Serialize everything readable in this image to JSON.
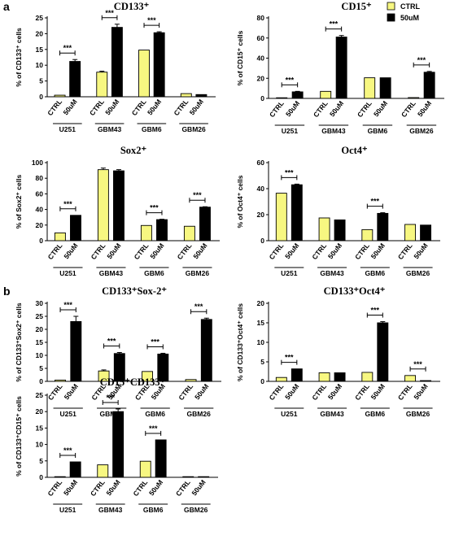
{
  "panel_labels": [
    "a",
    "b"
  ],
  "legend": [
    {
      "label": "CTRL",
      "color": "#f7f781"
    },
    {
      "label": "50uM",
      "color": "#000000"
    }
  ],
  "bar_labels": [
    "CTRL",
    "50uM"
  ],
  "chart_data": [
    {
      "type": "bar",
      "title": "CD133⁺",
      "ylabel": "% of CD133⁺ cells",
      "ylim": [
        0,
        25
      ],
      "yticks": [
        0,
        5,
        10,
        15,
        20,
        25
      ],
      "categories": [
        "U251",
        "GBM43",
        "GBM6",
        "GBM26"
      ],
      "series": [
        {
          "name": "CTRL",
          "values": [
            0.5,
            7.8,
            14.8,
            1.0
          ]
        },
        {
          "name": "50uM",
          "values": [
            11.2,
            22.0,
            20.3,
            0.7
          ]
        }
      ],
      "errors": [
        [
          0,
          0.3,
          0,
          0
        ],
        [
          0.6,
          1.0,
          0.3,
          0
        ]
      ],
      "significance": [
        "***",
        "***",
        "***",
        ""
      ]
    },
    {
      "type": "bar",
      "title": "CD15⁺",
      "ylabel": "% of CD15⁺ cells",
      "ylim": [
        0,
        80
      ],
      "yticks": [
        0,
        20,
        40,
        60,
        80
      ],
      "categories": [
        "U251",
        "GBM43",
        "GBM6",
        "GBM26"
      ],
      "series": [
        {
          "name": "CTRL",
          "values": [
            0.5,
            7.0,
            20.5,
            0.8
          ]
        },
        {
          "name": "50uM",
          "values": [
            6.5,
            61.0,
            20.5,
            26.0
          ]
        }
      ],
      "errors": [
        [
          0,
          0,
          0,
          0
        ],
        [
          0.5,
          1.5,
          0,
          0.8
        ]
      ],
      "significance": [
        "***",
        "***",
        "",
        "***"
      ]
    },
    {
      "type": "bar",
      "title": "Sox2⁺",
      "ylabel": "% of Sox2⁺ cells",
      "ylim": [
        0,
        100
      ],
      "yticks": [
        0,
        20,
        40,
        60,
        80,
        100
      ],
      "categories": [
        "U251",
        "GBM43",
        "GBM6",
        "GBM26"
      ],
      "series": [
        {
          "name": "CTRL",
          "values": [
            10.0,
            91.0,
            19.5,
            18.5
          ]
        },
        {
          "name": "50uM",
          "values": [
            32.5,
            89.5,
            27.0,
            43.0
          ]
        }
      ],
      "errors": [
        [
          0,
          2.0,
          0,
          0
        ],
        [
          0,
          1.5,
          0.5,
          0.5
        ]
      ],
      "significance": [
        "***",
        "",
        "***",
        "***"
      ]
    },
    {
      "type": "bar",
      "title": "Oct4⁺",
      "ylabel": "% of Oct4⁺ cells",
      "ylim": [
        0,
        60
      ],
      "yticks": [
        0,
        20,
        40,
        60
      ],
      "categories": [
        "U251",
        "GBM43",
        "GBM6",
        "GBM26"
      ],
      "series": [
        {
          "name": "CTRL",
          "values": [
            36.5,
            17.5,
            8.5,
            12.5
          ]
        },
        {
          "name": "50uM",
          "values": [
            43.0,
            16.0,
            21.0,
            12.0
          ]
        }
      ],
      "errors": [
        [
          0,
          0,
          0,
          0
        ],
        [
          0.5,
          0,
          0.5,
          0
        ]
      ],
      "significance": [
        "***",
        "",
        "***",
        ""
      ]
    },
    {
      "type": "bar",
      "title": "CD133⁺Sox-2⁺",
      "ylabel": "% of CD133⁺Sox2⁺ cells",
      "ylim": [
        0,
        30
      ],
      "yticks": [
        0,
        5,
        10,
        15,
        20,
        25,
        30
      ],
      "categories": [
        "U251",
        "GBM43",
        "GBM6",
        "GBM26"
      ],
      "series": [
        {
          "name": "CTRL",
          "values": [
            0.5,
            4.0,
            3.8,
            0.7
          ]
        },
        {
          "name": "50uM",
          "values": [
            23.0,
            10.7,
            10.5,
            23.8
          ]
        }
      ],
      "errors": [
        [
          0,
          0.4,
          0,
          0
        ],
        [
          2.0,
          0.4,
          0.3,
          0.5
        ]
      ],
      "significance": [
        "***",
        "***",
        "***",
        "***"
      ]
    },
    {
      "type": "bar",
      "title": "CD133⁺Oct4⁺",
      "ylabel": "% of CD133⁺Oct4⁺ cells",
      "ylim": [
        0,
        20
      ],
      "yticks": [
        0,
        5,
        10,
        15,
        20
      ],
      "categories": [
        "U251",
        "GBM43",
        "GBM6",
        "GBM26"
      ],
      "series": [
        {
          "name": "CTRL",
          "values": [
            1.0,
            2.2,
            2.3,
            1.5
          ]
        },
        {
          "name": "50uM",
          "values": [
            3.2,
            2.2,
            15.0,
            0.2
          ]
        }
      ],
      "errors": [
        [
          0,
          0,
          0,
          0
        ],
        [
          0,
          0,
          0.3,
          0
        ]
      ],
      "significance": [
        "***",
        "",
        "***",
        "***"
      ]
    },
    {
      "type": "bar",
      "title": "CD15⁺CD133⁺",
      "ylabel": "% of CD133⁺CD15⁺ cells",
      "ylim": [
        0,
        25
      ],
      "yticks": [
        0,
        5,
        10,
        15,
        20,
        25
      ],
      "categories": [
        "U251",
        "GBM43",
        "GBM6",
        "GBM26"
      ],
      "series": [
        {
          "name": "CTRL",
          "values": [
            0.2,
            3.8,
            4.9,
            0.2
          ]
        },
        {
          "name": "50uM",
          "values": [
            4.7,
            20.0,
            11.4,
            0.2
          ]
        }
      ],
      "errors": [
        [
          0,
          0,
          0,
          0
        ],
        [
          0,
          0.8,
          0,
          0
        ]
      ],
      "significance": [
        "***",
        "***",
        "***",
        ""
      ]
    }
  ]
}
